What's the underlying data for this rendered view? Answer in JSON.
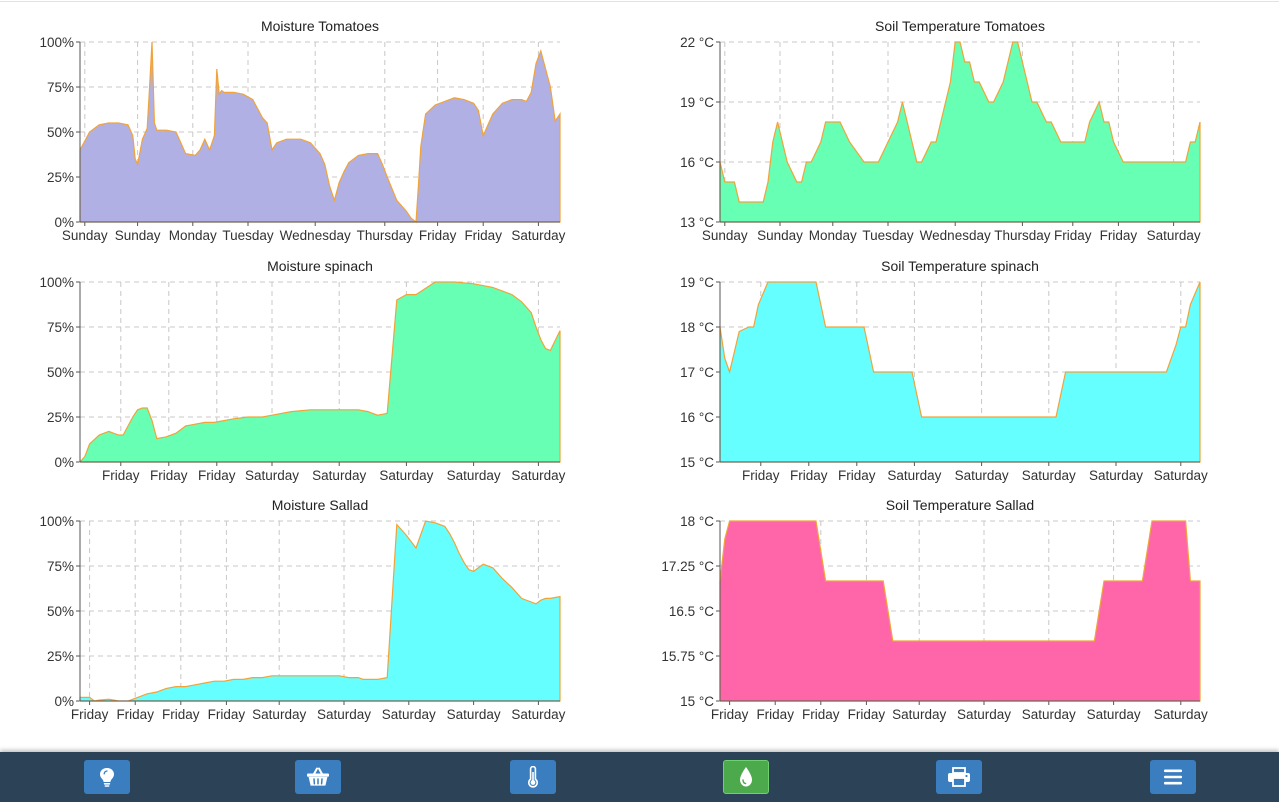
{
  "chart_data": [
    {
      "id": "moist-tomatoes",
      "type": "area",
      "title": "Moisture Tomatoes",
      "fill": "#b1b0e4",
      "ylim": [
        0,
        100
      ],
      "ytick_values": [
        0,
        25,
        50,
        75,
        100
      ],
      "ytick_labels": [
        "0%",
        "25%",
        "50%",
        "75%",
        "100%"
      ],
      "xlim": [
        0,
        100
      ],
      "xtick_positions": [
        1,
        12,
        23.5,
        35,
        49,
        63.5,
        74.5,
        84,
        95.5
      ],
      "xtick_labels": [
        "Sunday",
        "Sunday",
        "Monday",
        "Tuesday",
        "Wednesday",
        "Thursday",
        "Friday",
        "Friday",
        "Saturday"
      ],
      "x": [
        0,
        2,
        4,
        6,
        8,
        10,
        11,
        11.5,
        12,
        13,
        14,
        14.5,
        15,
        15.5,
        16,
        18,
        20,
        21,
        22,
        24,
        25,
        26,
        27,
        28,
        28.5,
        29,
        29.5,
        30,
        32,
        34,
        36,
        38,
        39,
        40,
        41,
        42,
        43,
        44,
        46,
        48,
        50,
        51,
        52,
        53,
        54,
        55,
        56,
        58,
        60,
        62,
        63,
        64,
        66,
        68,
        69,
        70,
        70.5,
        71,
        72,
        74,
        76,
        78,
        80,
        82,
        83,
        84,
        86,
        88,
        90,
        92,
        93,
        94,
        95,
        96,
        98,
        99,
        100
      ],
      "y": [
        40,
        50,
        54,
        55,
        55,
        54,
        48,
        35,
        32,
        46,
        52,
        75,
        100,
        55,
        51,
        51,
        50,
        44,
        38,
        37,
        40,
        46,
        40,
        48,
        85,
        71,
        73,
        72,
        72,
        71,
        68,
        58,
        55,
        40,
        44,
        45,
        46,
        46,
        46,
        44,
        38,
        32,
        20,
        12,
        22,
        28,
        33,
        37,
        38,
        38,
        32,
        25,
        12,
        6,
        2,
        0,
        20,
        42,
        60,
        65,
        67,
        69,
        68,
        66,
        62,
        48,
        60,
        66,
        68,
        68,
        67,
        72,
        88,
        95,
        75,
        56,
        60
      ]
    },
    {
      "id": "soil-tomatoes",
      "type": "area",
      "title": "Soil Temperature Tomatoes",
      "fill": "#66ffb3",
      "ylim": [
        13,
        22
      ],
      "ytick_values": [
        13,
        16,
        19,
        22
      ],
      "ytick_labels": [
        "13 °C",
        "16 °C",
        "19 °C",
        "22 °C"
      ],
      "xlim": [
        0,
        100
      ],
      "xtick_positions": [
        1,
        12.5,
        23.5,
        35,
        49,
        63,
        73.5,
        83,
        94.5
      ],
      "xtick_labels": [
        "Sunday",
        "Sunday",
        "Monday",
        "Tuesday",
        "Wednesday",
        "Thursday",
        "Friday",
        "Friday",
        "Saturday"
      ],
      "x": [
        0,
        1,
        2,
        3,
        4,
        9,
        10,
        10.5,
        11,
        12,
        13,
        14,
        16,
        17,
        18,
        19,
        21,
        22,
        24,
        25,
        27,
        30,
        31,
        33,
        35,
        37,
        38,
        39,
        40,
        41,
        42,
        44,
        45,
        46,
        48,
        49,
        50,
        51,
        52,
        53,
        54,
        56,
        57,
        59,
        60,
        61,
        62,
        63,
        64,
        65,
        66,
        68,
        69,
        71,
        72,
        73,
        76,
        77,
        79,
        80,
        81,
        82,
        84,
        85,
        90,
        92,
        93,
        94,
        95,
        96,
        97,
        98,
        99,
        100
      ],
      "y": [
        16,
        15,
        15,
        15,
        14,
        14,
        15,
        16,
        17,
        18,
        17,
        16,
        15,
        15,
        16,
        16,
        17,
        18,
        18,
        18,
        17,
        16,
        16,
        16,
        17,
        18,
        19,
        18,
        17,
        16,
        16,
        17,
        17,
        18,
        20,
        22,
        22,
        21,
        21,
        20,
        20,
        19,
        19,
        20,
        21,
        22,
        22,
        21,
        20,
        19,
        19,
        18,
        18,
        17,
        17,
        17,
        17,
        18,
        19,
        18,
        18,
        17,
        16,
        16,
        16,
        16,
        16,
        16,
        16,
        16,
        16,
        17,
        17,
        18
      ]
    },
    {
      "id": "moist-spinach",
      "type": "area",
      "title": "Moisture spinach",
      "fill": "#66ffb3",
      "ylim": [
        0,
        100
      ],
      "ytick_values": [
        0,
        25,
        50,
        75,
        100
      ],
      "ytick_labels": [
        "0%",
        "25%",
        "50%",
        "75%",
        "100%"
      ],
      "xlim": [
        0,
        100
      ],
      "xtick_positions": [
        8.5,
        18.5,
        28.5,
        40,
        54,
        68,
        82,
        95.5
      ],
      "xtick_labels": [
        "Friday",
        "Friday",
        "Friday",
        "Saturday",
        "Saturday",
        "Saturday",
        "Saturday",
        "Saturday"
      ],
      "x": [
        0,
        1,
        2,
        4,
        6,
        8,
        9,
        10,
        11,
        12,
        13,
        14,
        15,
        16,
        18,
        20,
        22,
        24,
        26,
        28,
        30,
        32,
        35,
        38,
        40,
        44,
        48,
        50,
        54,
        58,
        60,
        61,
        62,
        64,
        66,
        68,
        70,
        74,
        78,
        82,
        86,
        90,
        92,
        94,
        95,
        96,
        97,
        98,
        100
      ],
      "y": [
        0,
        3,
        10,
        15,
        17,
        15,
        15,
        20,
        25,
        29,
        30,
        30,
        23,
        13,
        14,
        16,
        20,
        21,
        22,
        22,
        23,
        24,
        25,
        25,
        26,
        28,
        29,
        29,
        29,
        29,
        28,
        27,
        26,
        27,
        90,
        93,
        93,
        100,
        100,
        99,
        97,
        93,
        89,
        83,
        75,
        68,
        63,
        62,
        73
      ]
    },
    {
      "id": "soil-spinach",
      "type": "area",
      "title": "Soil Temperature spinach",
      "fill": "#66ffff",
      "ylim": [
        15,
        19
      ],
      "ytick_values": [
        15,
        16,
        17,
        18,
        19
      ],
      "ytick_labels": [
        "15 °C",
        "16 °C",
        "17 °C",
        "18 °C",
        "19 °C"
      ],
      "xlim": [
        0,
        100
      ],
      "xtick_positions": [
        8.5,
        18.5,
        28.5,
        40.5,
        54.5,
        68.5,
        82.5,
        96
      ],
      "xtick_labels": [
        "Friday",
        "Friday",
        "Friday",
        "Saturday",
        "Saturday",
        "Saturday",
        "Saturday",
        "Saturday"
      ],
      "x": [
        0,
        1,
        2,
        4,
        6,
        7,
        8,
        10,
        14,
        20,
        21,
        22,
        24,
        30,
        31,
        32,
        34,
        40,
        41,
        42,
        44,
        58,
        70,
        71,
        72,
        74,
        84,
        85,
        86,
        87,
        88,
        89,
        90,
        91,
        92,
        93,
        95,
        96,
        97,
        98,
        100
      ],
      "y": [
        18,
        17.3,
        17,
        17.9,
        18,
        18,
        18.5,
        19,
        19,
        19,
        18.5,
        18,
        18,
        18,
        17.5,
        17,
        17,
        17,
        16.5,
        16,
        16,
        16,
        16,
        16.5,
        17,
        17,
        17,
        17,
        17,
        17,
        17,
        17,
        17,
        17,
        17,
        17,
        17.6,
        18,
        18,
        18.5,
        19
      ]
    },
    {
      "id": "moist-sallad",
      "type": "area",
      "title": "Moisture Sallad",
      "fill": "#66ffff",
      "ylim": [
        0,
        100
      ],
      "ytick_values": [
        0,
        25,
        50,
        75,
        100
      ],
      "ytick_labels": [
        "0%",
        "25%",
        "50%",
        "75%",
        "100%"
      ],
      "xlim": [
        0,
        100
      ],
      "xtick_positions": [
        2,
        11.5,
        21,
        30.5,
        41.5,
        55,
        68.5,
        82,
        95.5
      ],
      "xtick_labels": [
        "Friday",
        "Friday",
        "Friday",
        "Friday",
        "Saturday",
        "Saturday",
        "Saturday",
        "Saturday",
        "Saturday"
      ],
      "x": [
        0,
        2,
        3,
        4,
        6,
        8,
        10,
        12,
        14,
        16,
        17,
        18,
        20,
        22,
        24,
        26,
        28,
        30,
        32,
        34,
        36,
        38,
        40,
        42,
        44,
        46,
        48,
        50,
        52,
        54,
        56,
        58,
        59,
        60,
        62,
        64,
        66,
        68,
        70,
        72,
        74,
        76,
        77,
        78,
        79,
        80,
        81,
        82,
        84,
        86,
        88,
        90,
        92,
        94,
        95,
        96,
        97,
        98,
        100
      ],
      "y": [
        2,
        2,
        0,
        0.5,
        1,
        0,
        0,
        2,
        4,
        5,
        6,
        7,
        8,
        8,
        9,
        10,
        11,
        11,
        12,
        12,
        13,
        13,
        14,
        14,
        14,
        14,
        14,
        14,
        14,
        14,
        13,
        13,
        12,
        12,
        12,
        13,
        98,
        92,
        85,
        100,
        99,
        97,
        93,
        88,
        82,
        77,
        73,
        72,
        76,
        74,
        68,
        63,
        57,
        55,
        54,
        56,
        57,
        57,
        58
      ]
    },
    {
      "id": "soil-sallad",
      "type": "area",
      "title": "Soil Temperature Sallad",
      "fill": "#ff66aa",
      "ylim": [
        15,
        18
      ],
      "ytick_values": [
        15,
        15.75,
        16.5,
        17.25,
        18
      ],
      "ytick_labels": [
        "15 °C",
        "15.75 °C",
        "16.5 °C",
        "17.25 °C",
        "18 °C"
      ],
      "xlim": [
        0,
        100
      ],
      "xtick_positions": [
        2,
        11.5,
        21,
        30.5,
        41.5,
        55,
        68.5,
        82,
        96
      ],
      "xtick_labels": [
        "Friday",
        "Friday",
        "Friday",
        "Friday",
        "Saturday",
        "Saturday",
        "Saturday",
        "Saturday",
        "Saturday"
      ],
      "x": [
        0,
        1,
        2,
        4,
        20,
        21,
        22,
        24,
        34,
        35,
        36,
        38,
        78,
        79,
        80,
        82,
        88,
        89,
        90,
        92,
        97,
        98,
        100
      ],
      "y": [
        17,
        17.7,
        18,
        18,
        18,
        17.5,
        17,
        17,
        17,
        16.5,
        16,
        16,
        16,
        16.5,
        17,
        17,
        17,
        17.5,
        18,
        18,
        18,
        17,
        17
      ]
    }
  ],
  "navbar": {
    "background": "#2c4257",
    "buttons": [
      {
        "name": "lightbulb",
        "icon": "lightbulb-icon",
        "active": false
      },
      {
        "name": "basket",
        "icon": "basket-icon",
        "active": false
      },
      {
        "name": "thermometer",
        "icon": "thermometer-icon",
        "active": false
      },
      {
        "name": "water-drop",
        "icon": "water-drop-icon",
        "active": true
      },
      {
        "name": "print",
        "icon": "print-icon",
        "active": false
      },
      {
        "name": "menu",
        "icon": "menu-icon",
        "active": false
      }
    ]
  }
}
